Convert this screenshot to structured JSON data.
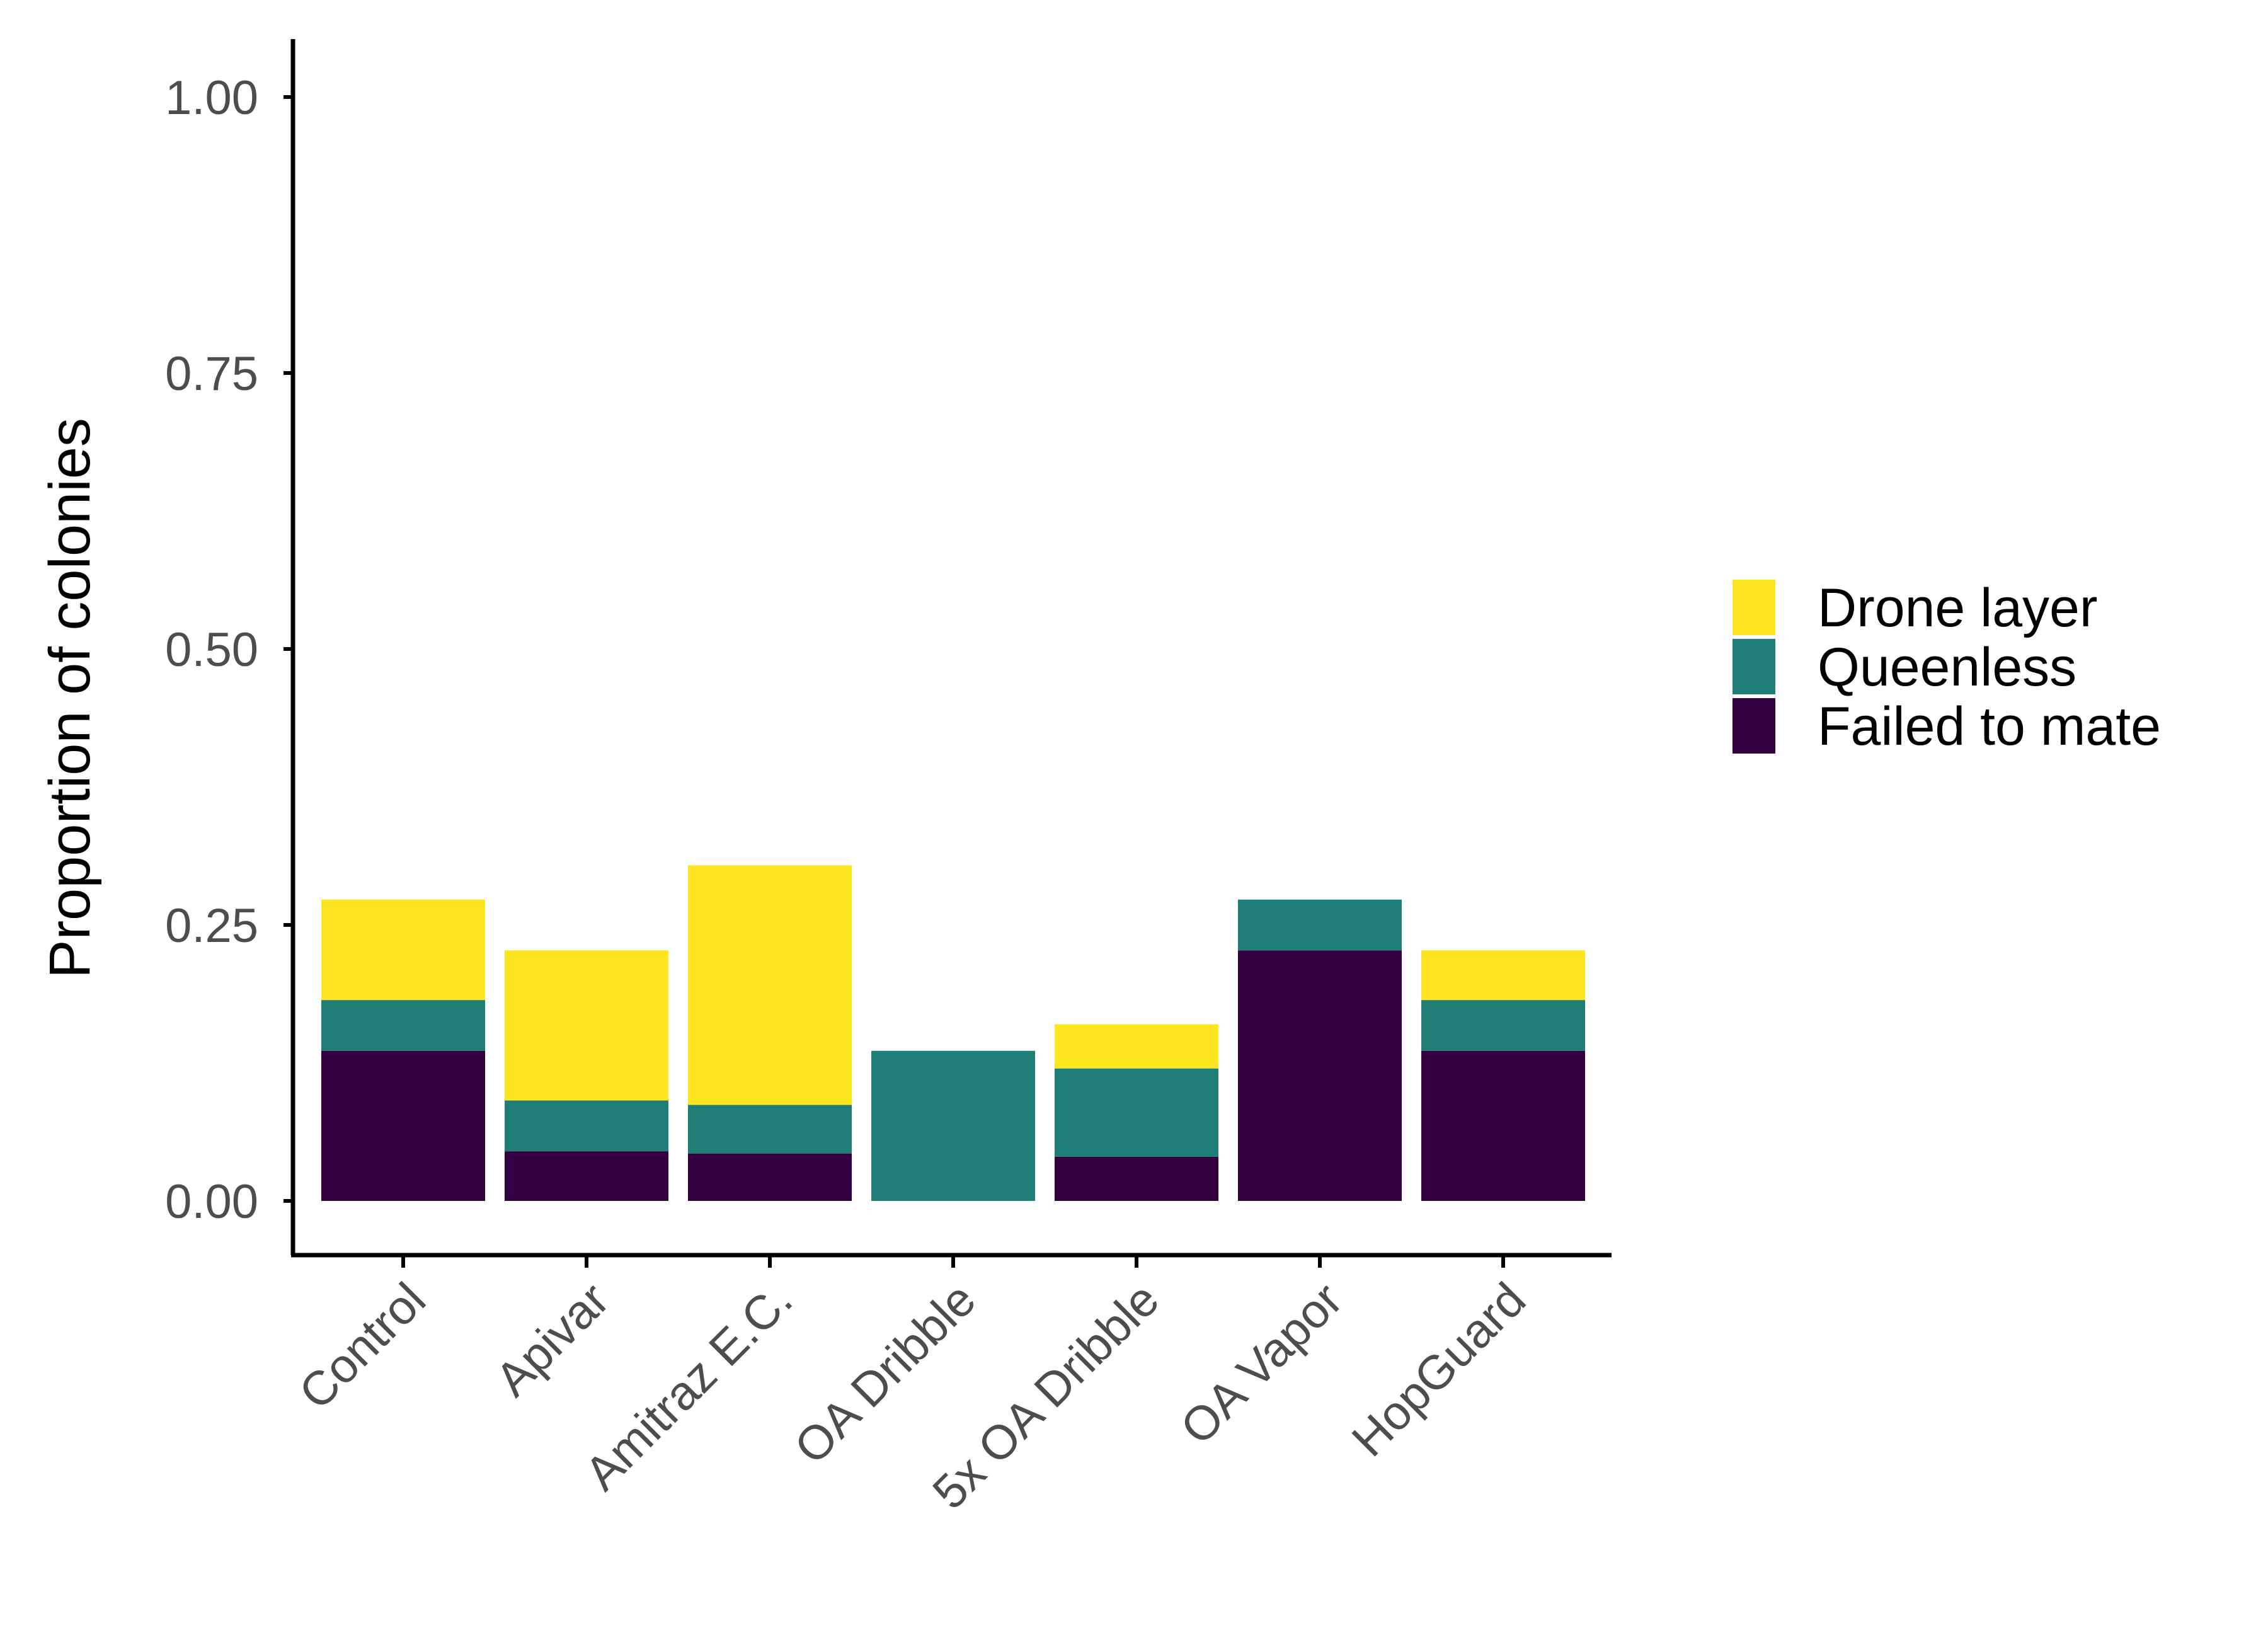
{
  "chart_data": {
    "type": "bar",
    "stacked": true,
    "title": "",
    "xlabel": "",
    "ylabel": "Proportion of colonies",
    "ylim": [
      0,
      1.05
    ],
    "yticks": [
      0,
      0.25,
      0.5,
      0.75,
      1.0
    ],
    "ytick_labels": [
      "0.00",
      "0.25",
      "0.50",
      "0.75",
      "1.00"
    ],
    "grid": false,
    "legend_position": "right",
    "categories": [
      "Control",
      "Apivar",
      "Amitraz E.C.",
      "OA Dribble",
      "5x OA Dribble",
      "OA Vapor",
      "HopGuard"
    ],
    "series": [
      {
        "name": "Failed to mate",
        "color": "#340042",
        "values": [
          0.136,
          0.045,
          0.043,
          0.0,
          0.04,
          0.227,
          0.136
        ]
      },
      {
        "name": "Queenless",
        "color": "#1f7f77",
        "values": [
          0.046,
          0.046,
          0.044,
          0.136,
          0.08,
          0.046,
          0.046
        ]
      },
      {
        "name": "Drone layer",
        "color": "#fde51f",
        "values": [
          0.091,
          0.136,
          0.217,
          0.0,
          0.04,
          0.0,
          0.045
        ]
      }
    ],
    "legend_order": [
      "Drone layer",
      "Queenless",
      "Failed to mate"
    ]
  }
}
